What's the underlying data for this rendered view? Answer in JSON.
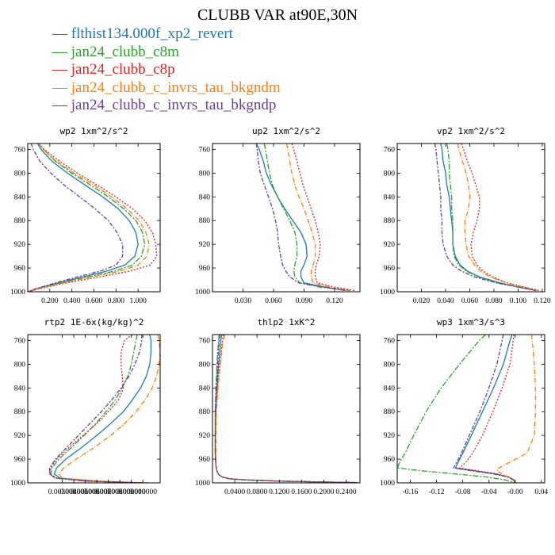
{
  "title": "CLUBB VAR at90E,30N",
  "legend": [
    {
      "label": "flthist134.000f_xp2_revert",
      "color": "#1f77b4",
      "dash": ""
    },
    {
      "label": "jan24_clubb_c8m",
      "color": "#2ca02c",
      "dash": "7,2,2,2"
    },
    {
      "label": "jan24_clubb_c8p",
      "color": "#d62728",
      "dash": "2,2"
    },
    {
      "label": "jan24_clubb_c_invrs_tau_bkgndm",
      "color": "#ff7f0e",
      "dash": "6,2,1,2"
    },
    {
      "label": "jan24_clubb_c_invrs_tau_bkgndp",
      "color": "#6a3d9a",
      "dash": "5,2,2,2"
    }
  ],
  "chart_data": [
    {
      "type": "line",
      "title": "wp2  1xm^2/s^2",
      "xlim": [
        0.0,
        1.2
      ],
      "ylim": [
        1000,
        750
      ],
      "xticks": [
        0.2,
        0.4,
        0.6,
        0.8,
        1.0
      ],
      "xtick_labels": [
        "0.200",
        "0.400",
        "0.600",
        "0.800",
        "1.000"
      ],
      "yticks": [
        760,
        800,
        840,
        880,
        920,
        960,
        1000
      ],
      "y": [
        750,
        760,
        780,
        800,
        820,
        840,
        860,
        880,
        900,
        920,
        940,
        955,
        965,
        975,
        985,
        995,
        1000
      ],
      "series": [
        {
          "name": "flthist134.000f_xp2_revert",
          "values": [
            0.09,
            0.12,
            0.22,
            0.36,
            0.52,
            0.68,
            0.82,
            0.92,
            0.98,
            1.0,
            0.97,
            0.88,
            0.72,
            0.5,
            0.28,
            0.08,
            0.0
          ]
        },
        {
          "name": "jan24_clubb_c8m",
          "values": [
            0.1,
            0.14,
            0.25,
            0.4,
            0.57,
            0.73,
            0.87,
            0.98,
            1.04,
            1.06,
            1.03,
            0.95,
            0.79,
            0.55,
            0.3,
            0.09,
            0.0
          ]
        },
        {
          "name": "jan24_clubb_c8p",
          "values": [
            0.1,
            0.15,
            0.29,
            0.45,
            0.63,
            0.8,
            0.95,
            1.06,
            1.13,
            1.16,
            1.17,
            1.11,
            0.93,
            0.65,
            0.35,
            0.1,
            0.0
          ]
        },
        {
          "name": "jan24_clubb_c_invrs_tau_bkgndm",
          "values": [
            0.1,
            0.14,
            0.26,
            0.42,
            0.6,
            0.76,
            0.9,
            1.01,
            1.07,
            1.1,
            1.08,
            1.0,
            0.84,
            0.58,
            0.32,
            0.09,
            0.0
          ]
        },
        {
          "name": "jan24_clubb_c_invrs_tau_bkgndp",
          "values": [
            0.03,
            0.05,
            0.11,
            0.21,
            0.33,
            0.47,
            0.61,
            0.73,
            0.81,
            0.86,
            0.86,
            0.8,
            0.66,
            0.45,
            0.25,
            0.07,
            0.0
          ]
        }
      ]
    },
    {
      "type": "line",
      "title": "up2  1xm^2/s^2",
      "xlim": [
        0.0,
        0.145
      ],
      "ylim": [
        1000,
        750
      ],
      "xticks": [
        0.03,
        0.06,
        0.09,
        0.12
      ],
      "xtick_labels": [
        "0.030",
        "0.060",
        "0.090",
        "0.120"
      ],
      "yticks": [
        760,
        800,
        840,
        880,
        920,
        960,
        1000
      ],
      "y": [
        750,
        760,
        780,
        800,
        820,
        840,
        860,
        880,
        900,
        920,
        940,
        955,
        965,
        975,
        985,
        992,
        998
      ],
      "series": [
        {
          "name": "flthist134.000f_xp2_revert",
          "values": [
            0.043,
            0.046,
            0.05,
            0.053,
            0.058,
            0.064,
            0.071,
            0.079,
            0.087,
            0.092,
            0.093,
            0.09,
            0.087,
            0.087,
            0.09,
            0.11,
            0.13
          ]
        },
        {
          "name": "jan24_clubb_c8m",
          "values": [
            0.051,
            0.052,
            0.054,
            0.056,
            0.059,
            0.064,
            0.07,
            0.076,
            0.081,
            0.083,
            0.083,
            0.081,
            0.08,
            0.081,
            0.086,
            0.105,
            0.135
          ]
        },
        {
          "name": "jan24_clubb_c8p",
          "values": [
            0.078,
            0.08,
            0.083,
            0.086,
            0.089,
            0.093,
            0.097,
            0.101,
            0.104,
            0.106,
            0.105,
            0.102,
            0.101,
            0.101,
            0.103,
            0.12,
            0.14
          ]
        },
        {
          "name": "jan24_clubb_c_invrs_tau_bkgndm",
          "values": [
            0.073,
            0.074,
            0.076,
            0.078,
            0.081,
            0.085,
            0.09,
            0.094,
            0.098,
            0.101,
            0.101,
            0.099,
            0.097,
            0.097,
            0.099,
            0.115,
            0.13
          ]
        },
        {
          "name": "jan24_clubb_c_invrs_tau_bkgndp",
          "values": [
            0.043,
            0.044,
            0.045,
            0.047,
            0.051,
            0.055,
            0.059,
            0.062,
            0.064,
            0.065,
            0.067,
            0.069,
            0.072,
            0.076,
            0.085,
            0.11,
            0.135
          ]
        }
      ]
    },
    {
      "type": "line",
      "title": "vp2  1xm^2/s^2",
      "xlim": [
        0.0,
        0.122
      ],
      "ylim": [
        1000,
        750
      ],
      "xticks": [
        0.02,
        0.04,
        0.06,
        0.08,
        0.1,
        0.12
      ],
      "xtick_labels": [
        "0.020",
        "0.040",
        "0.060",
        "0.080",
        "0.100",
        "0.120"
      ],
      "yticks": [
        760,
        800,
        840,
        880,
        920,
        960,
        1000
      ],
      "y": [
        750,
        760,
        780,
        800,
        820,
        840,
        860,
        880,
        900,
        920,
        940,
        955,
        965,
        975,
        985,
        992,
        998
      ],
      "series": [
        {
          "name": "flthist134.000f_xp2_revert",
          "values": [
            0.036,
            0.037,
            0.038,
            0.04,
            0.041,
            0.043,
            0.044,
            0.045,
            0.046,
            0.046,
            0.048,
            0.052,
            0.058,
            0.068,
            0.085,
            0.1,
            0.115
          ]
        },
        {
          "name": "jan24_clubb_c8m",
          "values": [
            0.041,
            0.042,
            0.043,
            0.043,
            0.044,
            0.045,
            0.045,
            0.046,
            0.046,
            0.046,
            0.047,
            0.051,
            0.057,
            0.067,
            0.083,
            0.1,
            0.115
          ]
        },
        {
          "name": "jan24_clubb_c8p",
          "values": [
            0.053,
            0.055,
            0.058,
            0.062,
            0.065,
            0.068,
            0.068,
            0.066,
            0.063,
            0.061,
            0.062,
            0.066,
            0.071,
            0.079,
            0.091,
            0.105,
            0.118
          ]
        },
        {
          "name": "jan24_clubb_c_invrs_tau_bkgndm",
          "values": [
            0.05,
            0.051,
            0.054,
            0.057,
            0.059,
            0.06,
            0.059,
            0.056,
            0.056,
            0.057,
            0.059,
            0.064,
            0.069,
            0.077,
            0.09,
            0.104,
            0.117
          ]
        },
        {
          "name": "jan24_clubb_c_invrs_tau_bkgndp",
          "values": [
            0.031,
            0.032,
            0.033,
            0.034,
            0.035,
            0.036,
            0.036,
            0.037,
            0.037,
            0.038,
            0.041,
            0.046,
            0.053,
            0.064,
            0.082,
            0.1,
            0.115
          ]
        }
      ]
    },
    {
      "type": "line",
      "title": "rtp2  1E-6x(kg/kg)^2",
      "xlim": [
        0.0,
        0.0115
      ],
      "ylim": [
        1000,
        750
      ],
      "xticks": [
        0.003,
        0.004,
        0.005,
        0.006,
        0.007,
        0.008,
        0.009,
        0.01
      ],
      "xtick_labels": [
        "0.003000",
        "0.004000",
        "0.005000",
        "0.006000",
        "0.007000",
        "0.008000",
        "0.009000",
        "0.010000"
      ],
      "yticks": [
        760,
        800,
        840,
        880,
        920,
        960,
        1000
      ],
      "y": [
        750,
        760,
        780,
        800,
        820,
        840,
        860,
        880,
        900,
        920,
        940,
        960,
        975,
        985,
        992,
        997,
        1000
      ],
      "series": [
        {
          "name": "flthist134.000f_xp2_revert",
          "values": [
            0.0106,
            0.0107,
            0.0107,
            0.0106,
            0.0103,
            0.0098,
            0.0091,
            0.0083,
            0.0072,
            0.006,
            0.0047,
            0.0033,
            0.0025,
            0.0023,
            0.0028,
            0.006,
            0.01
          ]
        },
        {
          "name": "jan24_clubb_c8m",
          "values": [
            0.0095,
            0.0094,
            0.0092,
            0.009,
            0.0087,
            0.0082,
            0.0076,
            0.0068,
            0.0059,
            0.0049,
            0.0038,
            0.0027,
            0.0021,
            0.002,
            0.0025,
            0.0055,
            0.01
          ]
        },
        {
          "name": "jan24_clubb_c8p",
          "values": [
            0.0091,
            0.0084,
            0.0081,
            0.0081,
            0.0082,
            0.0083,
            0.0079,
            0.007,
            0.006,
            0.0048,
            0.0036,
            0.0025,
            0.002,
            0.0019,
            0.0024,
            0.005,
            0.01
          ]
        },
        {
          "name": "jan24_clubb_c_invrs_tau_bkgndm",
          "values": [
            0.0113,
            0.0114,
            0.0115,
            0.0114,
            0.0112,
            0.0108,
            0.0102,
            0.0094,
            0.0084,
            0.0072,
            0.0058,
            0.0042,
            0.0031,
            0.0027,
            0.003,
            0.0062,
            0.0105
          ]
        },
        {
          "name": "jan24_clubb_c_invrs_tau_bkgndp",
          "values": [
            0.0099,
            0.0099,
            0.0097,
            0.0093,
            0.0088,
            0.0081,
            0.0073,
            0.0064,
            0.0054,
            0.0044,
            0.0034,
            0.0024,
            0.0019,
            0.0019,
            0.0024,
            0.005,
            0.01
          ]
        }
      ]
    },
    {
      "type": "line",
      "title": "thlp2  1xK^2",
      "xlim": [
        0.0,
        0.265
      ],
      "ylim": [
        1000,
        750
      ],
      "xticks": [
        0.04,
        0.08,
        0.12,
        0.16,
        0.2,
        0.24
      ],
      "xtick_labels": [
        "0.0400",
        "0.0800",
        "0.1200",
        "0.1600",
        "0.2000",
        "0.2400"
      ],
      "yticks": [
        760,
        800,
        840,
        880,
        920,
        960,
        1000
      ],
      "y": [
        750,
        760,
        800,
        840,
        880,
        920,
        950,
        970,
        980,
        986,
        990,
        993,
        995,
        997,
        998.5,
        999.5
      ],
      "series": [
        {
          "name": "flthist134.000f_xp2_revert",
          "values": [
            0.017,
            0.015,
            0.011,
            0.008,
            0.006,
            0.005,
            0.005,
            0.006,
            0.008,
            0.011,
            0.017,
            0.03,
            0.06,
            0.12,
            0.2,
            0.26
          ]
        },
        {
          "name": "jan24_clubb_c8m",
          "values": [
            0.012,
            0.011,
            0.008,
            0.006,
            0.005,
            0.005,
            0.005,
            0.006,
            0.008,
            0.011,
            0.017,
            0.03,
            0.06,
            0.12,
            0.2,
            0.26
          ]
        },
        {
          "name": "jan24_clubb_c8p",
          "values": [
            0.02,
            0.018,
            0.013,
            0.009,
            0.006,
            0.005,
            0.005,
            0.006,
            0.008,
            0.011,
            0.017,
            0.03,
            0.06,
            0.12,
            0.2,
            0.26
          ]
        },
        {
          "name": "jan24_clubb_c_invrs_tau_bkgndm",
          "values": [
            0.022,
            0.019,
            0.014,
            0.01,
            0.007,
            0.006,
            0.006,
            0.006,
            0.008,
            0.011,
            0.017,
            0.03,
            0.06,
            0.12,
            0.2,
            0.26
          ]
        },
        {
          "name": "jan24_clubb_c_invrs_tau_bkgndp",
          "values": [
            0.014,
            0.012,
            0.009,
            0.007,
            0.005,
            0.005,
            0.005,
            0.006,
            0.008,
            0.011,
            0.017,
            0.03,
            0.06,
            0.12,
            0.2,
            0.26
          ]
        }
      ]
    },
    {
      "type": "line",
      "title": "wp3  1xm^3/s^3",
      "xlim": [
        -0.18,
        0.045
      ],
      "ylim": [
        1000,
        750
      ],
      "xticks": [
        -0.16,
        -0.12,
        -0.08,
        -0.04,
        0.0,
        0.04
      ],
      "xtick_labels": [
        "-0.16",
        "-0.12",
        "-0.08",
        "-0.04",
        "-0.00",
        "0.04"
      ],
      "yticks": [
        760,
        800,
        840,
        880,
        920,
        960,
        1000
      ],
      "y": [
        750,
        760,
        800,
        840,
        880,
        920,
        950,
        965,
        975,
        980,
        985,
        990,
        995,
        1000
      ],
      "series": [
        {
          "name": "flthist134.000f_xp2_revert",
          "values": [
            -0.005,
            -0.008,
            -0.018,
            -0.033,
            -0.05,
            -0.067,
            -0.08,
            -0.087,
            -0.091,
            -0.06,
            -0.03,
            -0.01,
            -0.002,
            0.0
          ]
        },
        {
          "name": "jan24_clubb_c8m",
          "values": [
            -0.045,
            -0.055,
            -0.085,
            -0.113,
            -0.136,
            -0.155,
            -0.168,
            -0.176,
            -0.18,
            -0.14,
            -0.09,
            -0.045,
            -0.015,
            0.0
          ]
        },
        {
          "name": "jan24_clubb_c8p",
          "values": [
            -0.002,
            -0.003,
            -0.008,
            -0.02,
            -0.034,
            -0.05,
            -0.065,
            -0.075,
            -0.085,
            -0.055,
            -0.028,
            -0.01,
            -0.002,
            0.0
          ]
        },
        {
          "name": "jan24_clubb_c_invrs_tau_bkgndm",
          "values": [
            0.025,
            0.026,
            0.029,
            0.031,
            0.031,
            0.029,
            0.018,
            -0.008,
            -0.025,
            -0.028,
            -0.02,
            -0.01,
            -0.003,
            0.0
          ]
        },
        {
          "name": "jan24_clubb_c_invrs_tau_bkgndp",
          "values": [
            -0.018,
            -0.02,
            -0.028,
            -0.04,
            -0.054,
            -0.07,
            -0.082,
            -0.089,
            -0.094,
            -0.065,
            -0.033,
            -0.012,
            -0.003,
            0.0
          ]
        }
      ]
    }
  ]
}
